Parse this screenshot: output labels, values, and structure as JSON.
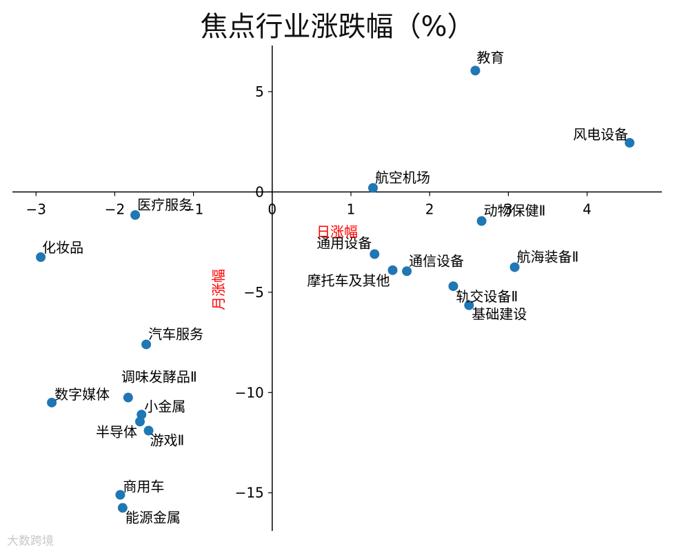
{
  "chart_data": {
    "type": "scatter",
    "title": "焦点行业涨跌幅（%）",
    "xlabel": "日涨幅",
    "ylabel": "月涨幅",
    "xlim": [
      -3.3,
      4.95
    ],
    "ylim": [
      -16.9,
      7.3
    ],
    "xticks": [
      -3,
      -2,
      -1,
      0,
      1,
      2,
      3,
      4
    ],
    "yticks": [
      -15,
      -10,
      -5,
      0,
      5
    ],
    "grid": false,
    "series": [
      {
        "points": [
          {
            "label": "教育",
            "x": 2.58,
            "y": 6.05
          },
          {
            "label": "风电设备",
            "x": 4.54,
            "y": 2.45
          },
          {
            "label": "航空机场",
            "x": 1.28,
            "y": 0.2
          },
          {
            "label": "医疗服务",
            "x": -1.74,
            "y": -1.15
          },
          {
            "label": "动物保健Ⅱ",
            "x": 2.66,
            "y": -1.45
          },
          {
            "label": "化妆品",
            "x": -2.94,
            "y": -3.25
          },
          {
            "label": "通用设备",
            "x": 1.3,
            "y": -3.1
          },
          {
            "label": "摩托车及其他",
            "x": 1.53,
            "y": -3.9
          },
          {
            "label": "通信设备",
            "x": 1.71,
            "y": -3.95
          },
          {
            "label": "航海装备Ⅱ",
            "x": 3.08,
            "y": -3.75
          },
          {
            "label": "轨交设备Ⅱ",
            "x": 2.3,
            "y": -4.7
          },
          {
            "label": "基础建设",
            "x": 2.5,
            "y": -5.65
          },
          {
            "label": "汽车服务",
            "x": -1.6,
            "y": -7.6
          },
          {
            "label": "调味发酵品Ⅱ",
            "x": -1.83,
            "y": -10.25
          },
          {
            "label": "数字媒体",
            "x": -2.8,
            "y": -10.5
          },
          {
            "label": "小金属",
            "x": -1.66,
            "y": -11.1
          },
          {
            "label": "半导体",
            "x": -1.68,
            "y": -11.45
          },
          {
            "label": "游戏Ⅱ",
            "x": -1.57,
            "y": -11.9
          },
          {
            "label": "商用车",
            "x": -1.93,
            "y": -15.1
          },
          {
            "label": "能源金属",
            "x": -1.9,
            "y": -15.75
          }
        ]
      }
    ]
  },
  "colors": {
    "marker": "#1f77b4",
    "axis_label": "#ff0000",
    "text": "#000000"
  },
  "watermark": "大数跨境"
}
